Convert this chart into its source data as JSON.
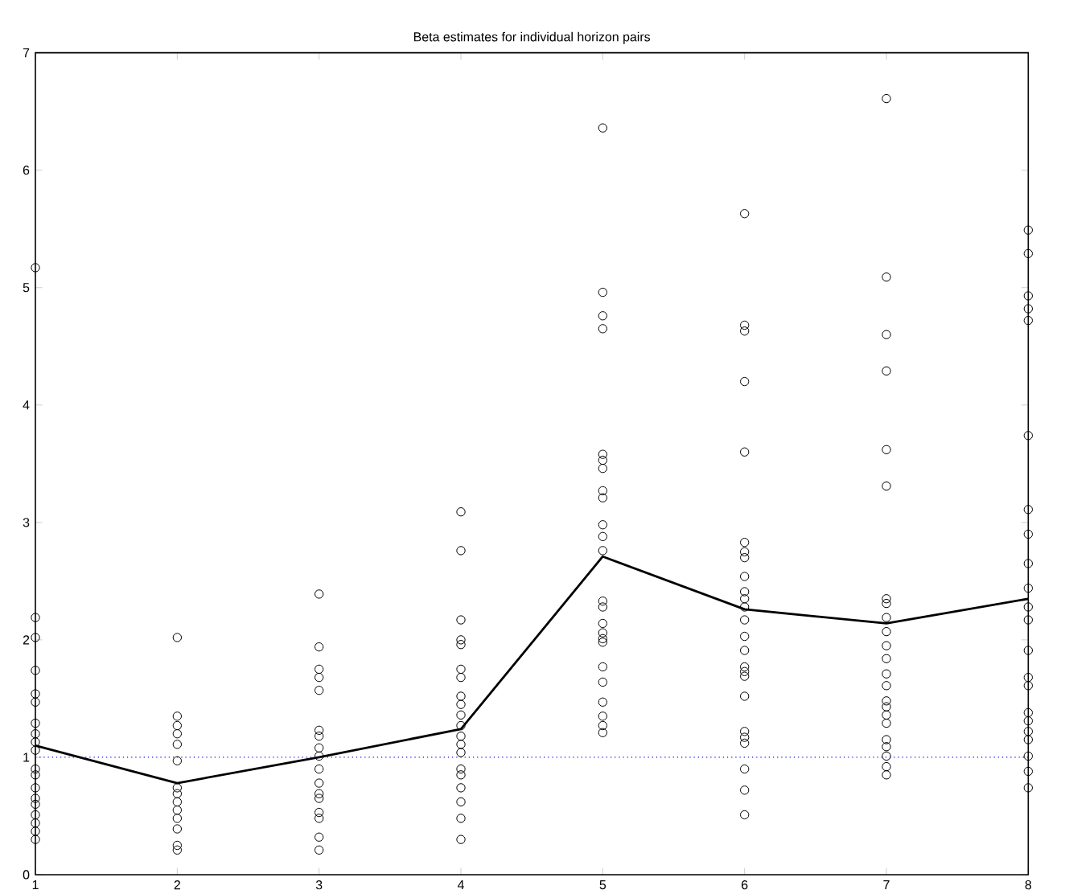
{
  "chart_data": {
    "type": "scatter",
    "title": "Beta estimates for individual horizon pairs",
    "xlim": [
      1,
      8
    ],
    "xticks": [
      1,
      2,
      3,
      4,
      5,
      6,
      7,
      8
    ],
    "ylim": [
      0,
      7
    ],
    "yticks": [
      0,
      1,
      2,
      3,
      4,
      5,
      6,
      7
    ],
    "series": [
      {
        "color": "#000000",
        "marker": "circle",
        "x": [
          1,
          1,
          1,
          1,
          1,
          1,
          1,
          1,
          1,
          1,
          1,
          1,
          1,
          1,
          1,
          1,
          1,
          1,
          1,
          2,
          2,
          2,
          2,
          2,
          2,
          2,
          2,
          2,
          2,
          2,
          2,
          2,
          2,
          3,
          3,
          3,
          3,
          3,
          3,
          3,
          3,
          3,
          3,
          3,
          3,
          3,
          3,
          3,
          3,
          3,
          4,
          4,
          4,
          4,
          4,
          4,
          4,
          4,
          4,
          4,
          4,
          4,
          4,
          4,
          4,
          4,
          4,
          4,
          4,
          4,
          5,
          5,
          5,
          5,
          5,
          5,
          5,
          5,
          5,
          5,
          5,
          5,
          5,
          5,
          5,
          5,
          5,
          5,
          5,
          5,
          5,
          5,
          5,
          5,
          6,
          6,
          6,
          6,
          6,
          6,
          6,
          6,
          6,
          6,
          6,
          6,
          6,
          6,
          6,
          6,
          6,
          6,
          6,
          6,
          6,
          6,
          6,
          6,
          6,
          7,
          7,
          7,
          7,
          7,
          7,
          7,
          7,
          7,
          7,
          7,
          7,
          7,
          7,
          7,
          7,
          7,
          7,
          7,
          7,
          7,
          7,
          7,
          8,
          8,
          8,
          8,
          8,
          8,
          8,
          8,
          8,
          8,
          8,
          8,
          8,
          8,
          8,
          8,
          8,
          8,
          8,
          8,
          8,
          8
        ],
        "values": [
          5.17,
          2.19,
          2.02,
          1.74,
          1.54,
          1.47,
          1.29,
          1.2,
          1.13,
          1.06,
          0.9,
          0.85,
          0.74,
          0.65,
          0.6,
          0.51,
          0.44,
          0.37,
          0.3,
          2.02,
          1.35,
          1.27,
          1.2,
          1.11,
          0.97,
          0.74,
          0.69,
          0.62,
          0.55,
          0.48,
          0.39,
          0.25,
          0.21,
          2.39,
          1.94,
          1.75,
          1.68,
          1.57,
          1.23,
          1.18,
          1.08,
          1.01,
          0.9,
          0.78,
          0.69,
          0.65,
          0.53,
          0.48,
          0.32,
          0.21,
          3.09,
          2.76,
          2.17,
          2.0,
          1.96,
          1.75,
          1.68,
          1.52,
          1.45,
          1.36,
          1.27,
          1.18,
          1.11,
          1.04,
          0.9,
          0.85,
          0.74,
          0.62,
          0.48,
          0.3,
          6.36,
          4.96,
          4.76,
          4.65,
          3.58,
          3.53,
          3.46,
          3.27,
          3.21,
          2.98,
          2.88,
          2.76,
          2.33,
          2.28,
          2.14,
          2.06,
          2.01,
          1.98,
          1.77,
          1.64,
          1.47,
          1.35,
          1.27,
          1.21,
          5.63,
          4.68,
          4.63,
          4.2,
          3.6,
          2.83,
          2.75,
          2.7,
          2.54,
          2.41,
          2.35,
          2.28,
          2.17,
          2.03,
          1.91,
          1.77,
          1.73,
          1.69,
          1.52,
          1.22,
          1.17,
          1.12,
          0.9,
          0.72,
          0.51,
          6.61,
          5.09,
          4.6,
          4.29,
          3.62,
          3.31,
          2.35,
          2.31,
          2.19,
          2.07,
          1.95,
          1.84,
          1.71,
          1.61,
          1.48,
          1.43,
          1.36,
          1.29,
          1.15,
          1.09,
          1.01,
          0.92,
          0.85,
          5.49,
          5.29,
          4.93,
          4.82,
          4.72,
          3.74,
          3.11,
          2.9,
          2.65,
          2.44,
          2.28,
          2.17,
          1.91,
          1.68,
          1.61,
          1.38,
          1.31,
          1.22,
          1.15,
          1.01,
          0.88,
          0.74
        ]
      },
      {
        "type": "line",
        "color": "#000000",
        "marker": "none",
        "line_style": "solid",
        "x": [
          1,
          2,
          3,
          4,
          5,
          6,
          7,
          8
        ],
        "values": [
          1.1,
          0.78,
          1.0,
          1.24,
          2.71,
          2.26,
          2.14,
          2.35
        ]
      }
    ],
    "ref_lines": [
      {
        "axis": "y",
        "value": 1,
        "color": "#0000ff",
        "line_style": "dotted"
      }
    ]
  }
}
